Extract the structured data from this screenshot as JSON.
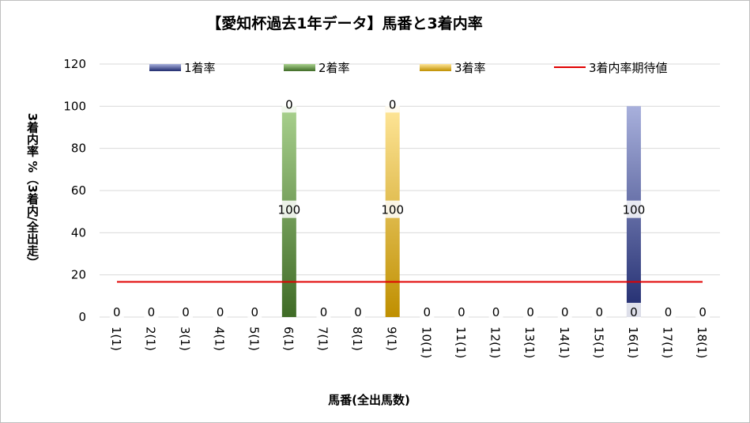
{
  "chart_data": {
    "type": "bar",
    "title": "【愛知杯過去1年データ】馬番と3着内率",
    "xlabel": "馬番(全出馬数)",
    "ylabel": "3着内率 %（3着内/全出走）",
    "ylim": [
      0,
      120
    ],
    "yticks": [
      0,
      20,
      40,
      60,
      80,
      100,
      120
    ],
    "grid": true,
    "stacked": true,
    "legend_position": "top",
    "categories": [
      "1(1)",
      "2(1)",
      "3(1)",
      "4(1)",
      "5(1)",
      "6(1)",
      "7(1)",
      "8(1)",
      "9(1)",
      "10(1)",
      "11(1)",
      "12(1)",
      "13(1)",
      "14(1)",
      "15(1)",
      "16(1)",
      "17(1)",
      "18(1)"
    ],
    "series": [
      {
        "name": "1着率",
        "color": "#2e3a87",
        "values": [
          0,
          0,
          0,
          0,
          0,
          0,
          0,
          0,
          0,
          0,
          0,
          0,
          0,
          0,
          0,
          100,
          0,
          0
        ]
      },
      {
        "name": "2着率",
        "color": "#548235",
        "values": [
          0,
          0,
          0,
          0,
          0,
          100,
          0,
          0,
          0,
          0,
          0,
          0,
          0,
          0,
          0,
          0,
          0,
          0
        ]
      },
      {
        "name": "3着率",
        "color": "#d4a017",
        "values": [
          0,
          0,
          0,
          0,
          0,
          0,
          0,
          0,
          100,
          0,
          0,
          0,
          0,
          0,
          0,
          0,
          0,
          0
        ]
      }
    ],
    "expected_line": {
      "name": "3着内率期待値",
      "color": "#e00000",
      "value": 16.7
    },
    "data_labels": [
      {
        "category": "1(1)",
        "text": "0",
        "y": 0
      },
      {
        "category": "2(1)",
        "text": "0",
        "y": 0
      },
      {
        "category": "3(1)",
        "text": "0",
        "y": 0
      },
      {
        "category": "4(1)",
        "text": "0",
        "y": 0
      },
      {
        "category": "5(1)",
        "text": "0",
        "y": 0
      },
      {
        "category": "6(1)",
        "text": "100",
        "y": 50
      },
      {
        "category": "6(1)",
        "text": "0",
        "y": 100
      },
      {
        "category": "7(1)",
        "text": "0",
        "y": 0
      },
      {
        "category": "8(1)",
        "text": "0",
        "y": 0
      },
      {
        "category": "9(1)",
        "text": "100",
        "y": 50
      },
      {
        "category": "9(1)",
        "text": "0",
        "y": 100
      },
      {
        "category": "10(1)",
        "text": "0",
        "y": 0
      },
      {
        "category": "11(1)",
        "text": "0",
        "y": 0
      },
      {
        "category": "12(1)",
        "text": "0",
        "y": 0
      },
      {
        "category": "13(1)",
        "text": "0",
        "y": 0
      },
      {
        "category": "14(1)",
        "text": "0",
        "y": 0
      },
      {
        "category": "15(1)",
        "text": "0",
        "y": 0
      },
      {
        "category": "16(1)",
        "text": "100",
        "y": 50
      },
      {
        "category": "16(1)",
        "text": "0",
        "y": 0
      },
      {
        "category": "17(1)",
        "text": "0",
        "y": 0
      },
      {
        "category": "18(1)",
        "text": "0",
        "y": 0
      }
    ]
  }
}
